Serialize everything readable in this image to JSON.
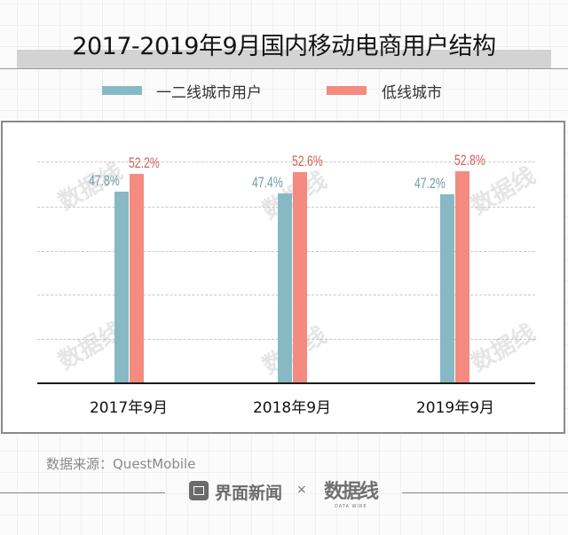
{
  "header": {
    "title": "2017-2019年9月国内移动电商用户结构"
  },
  "legend": [
    {
      "label": "一二线城市用户",
      "color": "#86b9c4"
    },
    {
      "label": "低线城市",
      "color": "#f48a80"
    }
  ],
  "colors": {
    "series1_label": "#6e9aa3",
    "series2_label": "#d05f58"
  },
  "chart_data": {
    "type": "bar",
    "title": "2017-2019年9月国内移动电商用户结构",
    "categories": [
      "2017年9月",
      "2018年9月",
      "2019年9月"
    ],
    "series": [
      {
        "name": "一二线城市用户",
        "values": [
          47.8,
          47.4,
          47.2
        ]
      },
      {
        "name": "低线城市",
        "values": [
          52.2,
          52.6,
          52.8
        ]
      }
    ],
    "value_labels": {
      "一二线城市用户": [
        "47.8%",
        "47.4%",
        "47.2%"
      ],
      "低线城市": [
        "52.2%",
        "52.6%",
        "52.8%"
      ]
    },
    "xlabel": "",
    "ylabel": "",
    "unit": "%",
    "ylim": [
      0,
      55
    ],
    "grid": true,
    "legend_position": "top"
  },
  "footer": {
    "source": "数据来源：QuestMobile",
    "brand1": "界面新闻",
    "separator": "×",
    "brand2": "数据线",
    "brand2_sub": "DATA WIRE"
  },
  "watermark": "数据线"
}
